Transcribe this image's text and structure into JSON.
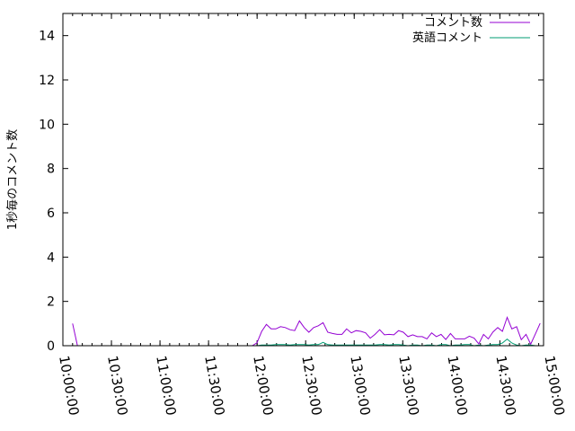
{
  "chart_data": {
    "type": "line",
    "title": "",
    "xlabel": "",
    "ylabel": "1秒毎のコメント数",
    "xlim": [
      "10:00:00",
      "14:57:00"
    ],
    "ylim": [
      0,
      15
    ],
    "xticks": [
      "10:00:00",
      "10:30:00",
      "11:00:00",
      "11:30:00",
      "12:00:00",
      "12:30:00",
      "13:00:00",
      "13:30:00",
      "14:00:00",
      "14:30:00",
      "15:00:00"
    ],
    "yticks": [
      0,
      2,
      4,
      6,
      8,
      10,
      12,
      14
    ],
    "grid": false,
    "legend_position": "top-right",
    "main_times": [
      "11:57:00",
      "11:59:55",
      "12:02:50",
      "12:05:45",
      "12:08:40",
      "12:11:35",
      "12:14:30",
      "12:17:25",
      "12:20:20",
      "12:23:15",
      "12:26:10",
      "12:29:05",
      "12:32:00",
      "12:34:55",
      "12:37:50",
      "12:40:45",
      "12:43:40",
      "12:46:35",
      "12:49:30",
      "12:52:25",
      "12:55:20",
      "12:58:15",
      "13:01:10",
      "13:04:05",
      "13:07:00",
      "13:09:55",
      "13:12:50",
      "13:15:45",
      "13:18:40",
      "13:21:35",
      "13:24:30",
      "13:27:25",
      "13:30:20",
      "13:33:15",
      "13:36:10",
      "13:39:05",
      "13:42:00",
      "13:44:55",
      "13:47:50",
      "13:50:45",
      "13:53:40",
      "13:56:35",
      "13:59:30",
      "14:02:25",
      "14:05:20",
      "14:08:15",
      "14:11:10",
      "14:14:05",
      "14:17:00",
      "14:19:55",
      "14:22:50",
      "14:25:45",
      "14:28:40",
      "14:31:35",
      "14:34:30",
      "14:37:25",
      "14:40:20",
      "14:43:15",
      "14:46:10",
      "14:49:05",
      "14:52:00",
      "14:54:55"
    ],
    "series": [
      {
        "name": "コメント数",
        "color": "#9400d3",
        "segments": [
          {
            "x": [
              "10:06:00",
              "10:09:00"
            ],
            "y": [
              1.0,
              0
            ]
          },
          {
            "x": [
              "11:29:00",
              "11:31:00"
            ],
            "y": [
              0,
              0
            ]
          },
          {
            "x": "main_times",
            "y": [
              0,
              0.13,
              0.65,
              0.96,
              0.76,
              0.76,
              0.86,
              0.82,
              0.72,
              0.68,
              1.12,
              0.82,
              0.61,
              0.82,
              0.9,
              1.04,
              0.61,
              0.55,
              0.51,
              0.51,
              0.76,
              0.58,
              0.68,
              0.65,
              0.58,
              0.34,
              0.51,
              0.72,
              0.49,
              0.51,
              0.49,
              0.68,
              0.61,
              0.41,
              0.49,
              0.41,
              0.41,
              0.31,
              0.58,
              0.41,
              0.51,
              0.28,
              0.55,
              0.31,
              0.31,
              0.31,
              0.43,
              0.34,
              0.08,
              0.51,
              0.31,
              0.62,
              0.82,
              0.65,
              1.28,
              0.76,
              0.86,
              0.27,
              0.51,
              0.07,
              0.54,
              1.01
            ]
          }
        ]
      },
      {
        "name": "英語コメント",
        "color": "#009e73",
        "segments": [
          {
            "x": "main_times",
            "y": [
              0,
              0,
              0.03,
              0.03,
              0.03,
              0.05,
              0.05,
              0.05,
              0.03,
              0.05,
              0.05,
              0.05,
              0.03,
              0.05,
              0.05,
              0.15,
              0.05,
              0.03,
              0.03,
              0.03,
              0.03,
              0.03,
              0.03,
              0.03,
              0.03,
              0.03,
              0.03,
              0.05,
              0.05,
              0.03,
              0.05,
              0.05,
              0.03,
              0,
              0.03,
              0.03,
              0,
              0.03,
              0.03,
              0,
              0.05,
              0.05,
              0,
              0.03,
              0.03,
              0.05,
              0.05,
              0,
              0.03,
              0,
              0.03,
              0.05,
              0.05,
              0.12,
              0.3,
              0.12,
              0.03,
              0,
              0.03,
              0.03,
              0,
              0
            ]
          }
        ]
      }
    ]
  }
}
